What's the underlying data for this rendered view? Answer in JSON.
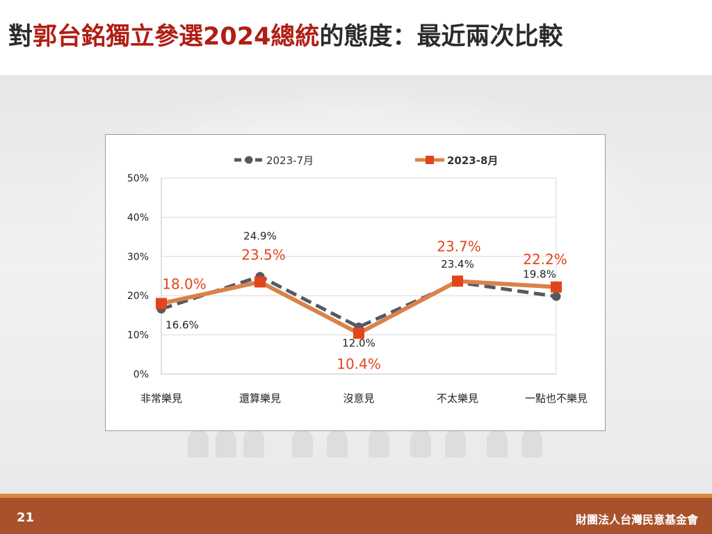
{
  "slide": {
    "title_prefix": "對",
    "title_highlight": "郭台銘獨立參選2024總統",
    "title_suffix": "的態度：最近兩次比較",
    "page_number": "21",
    "organization": "財團法人台灣民意基金會"
  },
  "colors": {
    "series1": "#555a60",
    "series2": "#d9824a",
    "series2_marker": "#e2451b",
    "series2_label": "#e2451b",
    "title_highlight": "#b01e14",
    "footer": "#a8512d"
  },
  "chart_data": {
    "type": "line",
    "categories": [
      "非常樂見",
      "還算樂見",
      "沒意見",
      "不太樂見",
      "一點也不樂見"
    ],
    "series": [
      {
        "name": "2023-7月",
        "values": [
          16.6,
          24.9,
          12.0,
          23.4,
          19.8
        ],
        "labels": [
          "16.6%",
          "24.9%",
          "12.0%",
          "23.4%",
          "19.8%"
        ],
        "style": "dashed",
        "marker": "circle"
      },
      {
        "name": "2023-8月",
        "values": [
          18.0,
          23.5,
          10.4,
          23.7,
          22.2
        ],
        "labels": [
          "18.0%",
          "23.5%",
          "10.4%",
          "23.7%",
          "22.2%"
        ],
        "style": "solid",
        "marker": "square"
      }
    ],
    "y_ticks": [
      "0%",
      "10%",
      "20%",
      "30%",
      "40%",
      "50%"
    ],
    "ylim": [
      0,
      50
    ],
    "grid": true,
    "legend_position": "top"
  }
}
